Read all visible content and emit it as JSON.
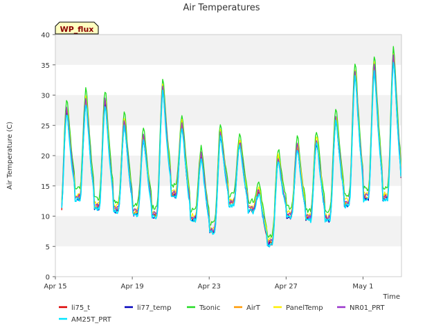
{
  "chart_data": {
    "type": "line",
    "title": "Air Temperatures",
    "site_label": "WP_flux",
    "xlabel": "Time",
    "ylabel": "Air Temperature (C)",
    "ylim": [
      0,
      40
    ],
    "yticks": [
      0,
      5,
      10,
      15,
      20,
      25,
      30,
      35,
      40
    ],
    "xlim_days": [
      0,
      18
    ],
    "xticks": [
      {
        "day": 0,
        "label": "Apr 15"
      },
      {
        "day": 4,
        "label": "Apr 19"
      },
      {
        "day": 8,
        "label": "Apr 23"
      },
      {
        "day": 12,
        "label": "Apr 27"
      },
      {
        "day": 16,
        "label": "May 1"
      }
    ],
    "grid": "horizontal bands",
    "legend_position": "bottom",
    "daily_min_max": [
      {
        "day": "Apr 15",
        "min": 10.0,
        "max": 27.5
      },
      {
        "day": "Apr 16",
        "min": 13.0,
        "max": 29.0
      },
      {
        "day": "Apr 17",
        "min": 11.5,
        "max": 29.0
      },
      {
        "day": "Apr 18",
        "min": 11.0,
        "max": 25.5
      },
      {
        "day": "Apr 19",
        "min": 10.5,
        "max": 23.0
      },
      {
        "day": "Apr 20",
        "min": 10.0,
        "max": 31.0
      },
      {
        "day": "Apr 21",
        "min": 13.5,
        "max": 25.0
      },
      {
        "day": "Apr 22",
        "min": 9.5,
        "max": 20.0
      },
      {
        "day": "Apr 23",
        "min": 7.5,
        "max": 23.5
      },
      {
        "day": "Apr 24",
        "min": 12.0,
        "max": 22.0
      },
      {
        "day": "Apr 25",
        "min": 11.0,
        "max": 14.0
      },
      {
        "day": "Apr 26",
        "min": 5.5,
        "max": 19.5
      },
      {
        "day": "Apr 27",
        "min": 10.0,
        "max": 21.5
      },
      {
        "day": "Apr 28",
        "min": 9.5,
        "max": 22.5
      },
      {
        "day": "Apr 29",
        "min": 9.5,
        "max": 26.0
      },
      {
        "day": "Apr 30",
        "min": 12.0,
        "max": 33.5
      },
      {
        "day": "May 1",
        "min": 13.0,
        "max": 34.5
      },
      {
        "day": "May 2",
        "min": 13.0,
        "max": 36.0
      }
    ],
    "end_value": 16.5,
    "series": [
      {
        "name": "li75_t",
        "color": "#dd0000",
        "offset": 0.0
      },
      {
        "name": "li77_temp",
        "color": "#0000bb",
        "offset": -0.2
      },
      {
        "name": "Tsonic",
        "color": "#22dd22",
        "offset": 2.2
      },
      {
        "name": "AirT",
        "color": "#ff9900",
        "offset": 0.3
      },
      {
        "name": "PanelTemp",
        "color": "#ffee00",
        "offset": 0.9
      },
      {
        "name": "NR01_PRT",
        "color": "#9933cc",
        "offset": 0.5
      },
      {
        "name": "AM25T_PRT",
        "color": "#00e5ff",
        "offset": -0.4
      }
    ]
  }
}
